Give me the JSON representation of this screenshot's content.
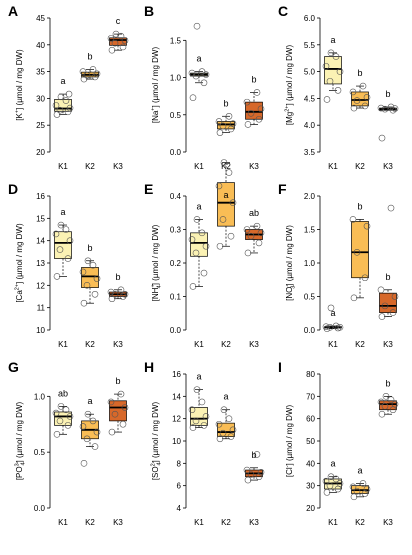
{
  "figure": {
    "colors": {
      "K1": "#fbf2b4",
      "K2": "#f9bd55",
      "K3": "#d7682a"
    }
  },
  "chart_data": [
    {
      "type": "box",
      "panel": "A",
      "ylabel_parts": [
        "[K",
        "+",
        "",
        "] (µmol / mg DW)"
      ],
      "categories": [
        "K1",
        "K2",
        "K3"
      ],
      "ylim": [
        20,
        45
      ],
      "yticks": [
        20,
        25,
        30,
        35,
        40,
        45
      ],
      "boxes": [
        {
          "whislo": 27.0,
          "q1": 27.6,
          "med": 28.1,
          "q3": 29.8,
          "whishi": 30.8
        },
        {
          "whislo": 33.6,
          "q1": 34.0,
          "med": 34.4,
          "q3": 34.9,
          "whishi": 35.4
        },
        {
          "whislo": 39.0,
          "q1": 39.9,
          "med": 40.9,
          "q3": 41.3,
          "whishi": 42.0
        }
      ],
      "points": [
        [
          27.0,
          27.5,
          27.8,
          28.2,
          28.7,
          29.6,
          30.3,
          30.8
        ],
        [
          33.6,
          34.0,
          34.3,
          34.6,
          35.0,
          35.4
        ],
        [
          39.0,
          39.6,
          40.3,
          40.8,
          41.2,
          41.6,
          42.0
        ]
      ],
      "letters": [
        "a",
        "b",
        "c"
      ]
    },
    {
      "type": "box",
      "panel": "B",
      "ylabel_parts": [
        "[Na",
        "+",
        "",
        "] (µmol / mg DW)"
      ],
      "categories": [
        "K1",
        "K2",
        "K3"
      ],
      "ylim": [
        0,
        1.8
      ],
      "yticks": [
        0.0,
        0.5,
        1.0,
        1.5
      ],
      "boxes": [
        {
          "whislo": 0.93,
          "q1": 1.02,
          "med": 1.04,
          "q3": 1.06,
          "whishi": 1.08
        },
        {
          "whislo": 0.26,
          "q1": 0.31,
          "med": 0.37,
          "q3": 0.41,
          "whishi": 0.48
        },
        {
          "whislo": 0.37,
          "q1": 0.44,
          "med": 0.54,
          "q3": 0.67,
          "whishi": 0.8
        }
      ],
      "points": [
        [
          0.73,
          0.93,
          1.02,
          1.04,
          1.06,
          1.08,
          1.69
        ],
        [
          0.26,
          0.31,
          0.35,
          0.38,
          0.41,
          0.48
        ],
        [
          0.37,
          0.44,
          0.52,
          0.58,
          0.67,
          0.8
        ]
      ],
      "letters": [
        "a",
        "b",
        "b"
      ]
    },
    {
      "type": "box",
      "panel": "C",
      "ylabel_parts": [
        "[Mg",
        "2+",
        "",
        "] (µmol / mg DW)"
      ],
      "categories": [
        "K1",
        "K2",
        "K3"
      ],
      "ylim": [
        3.5,
        6.0
      ],
      "yticks": [
        3.5,
        4.0,
        4.5,
        5.0,
        5.5,
        6.0
      ],
      "boxes": [
        {
          "whislo": 4.65,
          "q1": 4.77,
          "med": 5.05,
          "q3": 5.28,
          "whishi": 5.35
        },
        {
          "whislo": 4.32,
          "q1": 4.36,
          "med": 4.47,
          "q3": 4.62,
          "whishi": 4.73
        },
        {
          "whislo": 4.28,
          "q1": 4.28,
          "med": 4.3,
          "q3": 4.32,
          "whishi": 4.34
        }
      ],
      "points": [
        [
          4.48,
          4.65,
          4.82,
          5.0,
          5.1,
          5.28,
          5.35
        ],
        [
          4.32,
          4.36,
          4.46,
          4.52,
          4.62,
          4.73
        ],
        [
          3.76,
          4.28,
          4.3,
          4.31,
          4.32,
          4.34
        ]
      ],
      "letters": [
        "a",
        "b",
        "b"
      ]
    },
    {
      "type": "box",
      "panel": "D",
      "ylabel_parts": [
        "[Ca",
        "2+",
        "",
        "] (µmol / mg DW)"
      ],
      "categories": [
        "K1",
        "K2",
        "K3"
      ],
      "ylim": [
        10,
        16
      ],
      "yticks": [
        10,
        11,
        12,
        13,
        14,
        15,
        16
      ],
      "boxes": [
        {
          "whislo": 12.4,
          "q1": 13.2,
          "med": 13.9,
          "q3": 14.4,
          "whishi": 14.7
        },
        {
          "whislo": 11.2,
          "q1": 11.9,
          "med": 12.4,
          "q3": 12.8,
          "whishi": 13.1
        },
        {
          "whislo": 11.4,
          "q1": 11.5,
          "med": 11.6,
          "q3": 11.7,
          "whishi": 11.8
        }
      ],
      "points": [
        [
          12.4,
          13.2,
          13.6,
          14.0,
          14.3,
          14.5,
          14.7
        ],
        [
          11.2,
          11.6,
          12.0,
          12.3,
          12.6,
          12.9,
          13.1
        ],
        [
          11.4,
          11.5,
          11.6,
          11.6,
          11.7,
          11.8
        ]
      ],
      "letters": [
        "a",
        "b",
        "b"
      ]
    },
    {
      "type": "box",
      "panel": "E",
      "ylabel_parts": [
        "[NH",
        "+",
        "4",
        "] (µmol / mg DW)"
      ],
      "categories": [
        "K1",
        "K2",
        "K3"
      ],
      "ylim": [
        0,
        0.4
      ],
      "yticks": [
        0.0,
        0.1,
        0.2,
        0.3,
        0.4
      ],
      "boxes": [
        {
          "whislo": 0.13,
          "q1": 0.22,
          "med": 0.26,
          "q3": 0.29,
          "whishi": 0.33
        },
        {
          "whislo": 0.25,
          "q1": 0.31,
          "med": 0.38,
          "q3": 0.44,
          "whishi": 0.5
        },
        {
          "whislo": 0.23,
          "q1": 0.27,
          "med": 0.285,
          "q3": 0.3,
          "whishi": 0.31
        }
      ],
      "points": [
        [
          0.13,
          0.17,
          0.23,
          0.25,
          0.27,
          0.29,
          0.33
        ],
        [
          0.25,
          0.28,
          0.33,
          0.38,
          0.43,
          0.47,
          0.5
        ],
        [
          0.23,
          0.26,
          0.28,
          0.29,
          0.3,
          0.31
        ]
      ],
      "letters": [
        "a",
        "a",
        "ab"
      ]
    },
    {
      "type": "box",
      "panel": "F",
      "ylabel_parts": [
        "[NO",
        "-",
        "3",
        "] (µmol / mg DW)"
      ],
      "categories": [
        "K1",
        "K2",
        "K3"
      ],
      "ylim": [
        0,
        2.0
      ],
      "yticks": [
        0.0,
        0.5,
        1.0,
        1.5,
        2.0
      ],
      "boxes": [
        {
          "whislo": 0.02,
          "q1": 0.03,
          "med": 0.04,
          "q3": 0.05,
          "whishi": 0.06
        },
        {
          "whislo": 0.48,
          "q1": 0.78,
          "med": 1.16,
          "q3": 1.62,
          "whishi": 1.65
        },
        {
          "whislo": 0.2,
          "q1": 0.26,
          "med": 0.36,
          "q3": 0.55,
          "whishi": 0.6
        }
      ],
      "points": [
        [
          0.02,
          0.03,
          0.04,
          0.04,
          0.05,
          0.06,
          0.33
        ],
        [
          0.48,
          0.78,
          1.16,
          1.55,
          1.65
        ],
        [
          0.2,
          0.26,
          0.36,
          0.5,
          0.6,
          1.82
        ]
      ],
      "letters": [
        "a",
        "b",
        "b"
      ]
    },
    {
      "type": "box",
      "panel": "G",
      "ylabel_parts": [
        "[PO",
        "3-",
        "4",
        "] (µmol / mg DW)"
      ],
      "categories": [
        "K1",
        "K2",
        "K3"
      ],
      "ylim": [
        0,
        1.2
      ],
      "yticks": [
        0.0,
        0.5,
        1.0
      ],
      "boxes": [
        {
          "whislo": 0.66,
          "q1": 0.74,
          "med": 0.82,
          "q3": 0.86,
          "whishi": 0.91
        },
        {
          "whislo": 0.55,
          "q1": 0.62,
          "med": 0.7,
          "q3": 0.78,
          "whishi": 0.84
        },
        {
          "whislo": 0.68,
          "q1": 0.78,
          "med": 0.9,
          "q3": 0.96,
          "whishi": 1.02
        }
      ],
      "points": [
        [
          0.66,
          0.74,
          0.78,
          0.82,
          0.85,
          0.88,
          0.91
        ],
        [
          0.4,
          0.55,
          0.62,
          0.68,
          0.73,
          0.78,
          0.84
        ],
        [
          0.68,
          0.75,
          0.84,
          0.9,
          0.95,
          1.02
        ]
      ],
      "letters": [
        "ab",
        "a",
        "b"
      ]
    },
    {
      "type": "box",
      "panel": "H",
      "ylabel_parts": [
        "[SO",
        "2-",
        "4",
        "] (µmol / mg DW)"
      ],
      "categories": [
        "K1",
        "K2",
        "K3"
      ],
      "ylim": [
        4,
        16
      ],
      "yticks": [
        4,
        6,
        8,
        10,
        12,
        14,
        16
      ],
      "boxes": [
        {
          "whislo": 11.2,
          "q1": 11.4,
          "med": 12.0,
          "q3": 13.0,
          "whishi": 14.6
        },
        {
          "whislo": 10.2,
          "q1": 10.4,
          "med": 10.8,
          "q3": 11.6,
          "whishi": 12.8
        },
        {
          "whislo": 6.5,
          "q1": 6.8,
          "med": 7.1,
          "q3": 7.4,
          "whishi": 7.6
        }
      ],
      "points": [
        [
          11.2,
          11.4,
          11.8,
          12.2,
          12.8,
          13.5,
          14.6
        ],
        [
          10.2,
          10.4,
          10.7,
          11.0,
          11.5,
          12.0,
          12.8
        ],
        [
          6.5,
          6.8,
          7.0,
          7.2,
          7.4,
          8.8
        ]
      ],
      "letters": [
        "a",
        "a",
        "b"
      ]
    },
    {
      "type": "box",
      "panel": "I",
      "ylabel_parts": [
        "[Cl",
        "-",
        "",
        "] (µmol / mg DW)"
      ],
      "categories": [
        "K1",
        "K2",
        "K3"
      ],
      "ylim": [
        20,
        80
      ],
      "yticks": [
        20,
        30,
        40,
        50,
        60,
        70,
        80
      ],
      "boxes": [
        {
          "whislo": 27.0,
          "q1": 28.5,
          "med": 31.0,
          "q3": 33.0,
          "whishi": 34.0
        },
        {
          "whislo": 25.0,
          "q1": 26.5,
          "med": 28.0,
          "q3": 30.0,
          "whishi": 31.0
        },
        {
          "whislo": 62.0,
          "q1": 64.0,
          "med": 66.5,
          "q3": 68.0,
          "whishi": 70.0
        }
      ],
      "points": [
        [
          27.0,
          28.5,
          30.0,
          31.0,
          32.0,
          33.0,
          34.0
        ],
        [
          25.0,
          26.5,
          27.5,
          28.5,
          29.5,
          31.0
        ],
        [
          62.0,
          64.0,
          65.5,
          66.5,
          67.5,
          68.5,
          70.0
        ]
      ],
      "letters": [
        "a",
        "a",
        "b"
      ]
    }
  ]
}
